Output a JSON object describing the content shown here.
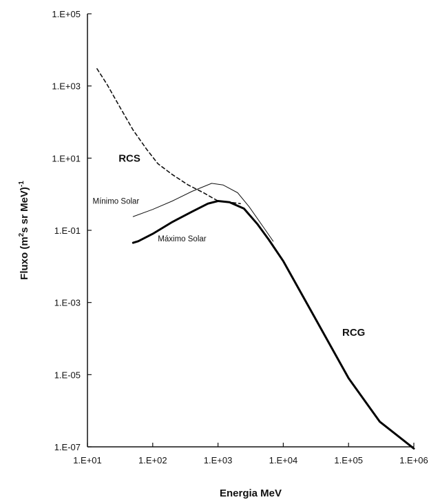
{
  "chart_data": {
    "type": "line",
    "xlabel": "Energia MeV",
    "ylabel": {
      "prefix": "Fluxo (m",
      "sup1": "2",
      "mid": "s sr MeV)",
      "sup2": "-1"
    },
    "x_scale": "log",
    "y_scale": "log",
    "xlim": [
      10,
      1000000
    ],
    "ylim": [
      1e-07,
      100000
    ],
    "x_ticks": [
      {
        "value": 10,
        "label": "1.E+01"
      },
      {
        "value": 100,
        "label": "1.E+02"
      },
      {
        "value": 1000,
        "label": "1.E+03"
      },
      {
        "value": 10000,
        "label": "1.E+04"
      },
      {
        "value": 100000,
        "label": "1.E+05"
      },
      {
        "value": 1000000,
        "label": "1.E+06"
      }
    ],
    "y_ticks": [
      {
        "value": 100000,
        "label": "1.E+05"
      },
      {
        "value": 1000,
        "label": "1.E+03"
      },
      {
        "value": 10,
        "label": "1.E+01"
      },
      {
        "value": 0.1,
        "label": "1.E-01"
      },
      {
        "value": 0.001,
        "label": "1.E-03"
      },
      {
        "value": 1e-05,
        "label": "1.E-05"
      },
      {
        "value": 1e-07,
        "label": "1.E-07"
      }
    ],
    "grid": false,
    "series": [
      {
        "id": "rcs",
        "style": "dashed",
        "color": "#111111",
        "points": [
          [
            14,
            3000
          ],
          [
            20,
            1100
          ],
          [
            30,
            300
          ],
          [
            50,
            60
          ],
          [
            80,
            18
          ],
          [
            120,
            7
          ],
          [
            200,
            3.5
          ],
          [
            350,
            1.8
          ],
          [
            600,
            1.1
          ],
          [
            1000,
            0.65
          ],
          [
            1500,
            0.6
          ],
          [
            2200,
            0.55
          ]
        ]
      },
      {
        "id": "minimo",
        "style": "thin",
        "color": "#111111",
        "points": [
          [
            50,
            0.24
          ],
          [
            100,
            0.38
          ],
          [
            200,
            0.65
          ],
          [
            400,
            1.2
          ],
          [
            800,
            2.0
          ],
          [
            1200,
            1.8
          ],
          [
            2000,
            1.1
          ],
          [
            3000,
            0.45
          ],
          [
            5000,
            0.12
          ],
          [
            7000,
            0.05
          ]
        ]
      },
      {
        "id": "maximo",
        "style": "thick",
        "color": "#000000",
        "points": [
          [
            50,
            0.045
          ],
          [
            60,
            0.05
          ],
          [
            100,
            0.08
          ],
          [
            200,
            0.17
          ],
          [
            400,
            0.33
          ],
          [
            700,
            0.55
          ],
          [
            1000,
            0.65
          ],
          [
            1500,
            0.6
          ],
          [
            2500,
            0.4
          ],
          [
            4000,
            0.15
          ],
          [
            6000,
            0.055
          ],
          [
            10000,
            0.014
          ],
          [
            30000,
            0.0004
          ],
          [
            100000,
            8e-06
          ],
          [
            300000,
            5e-07
          ],
          [
            1000000,
            9e-08
          ]
        ]
      }
    ],
    "annotations": [
      {
        "id": "rcs",
        "text": "RCS",
        "x": 30,
        "y": 8,
        "style": "bold"
      },
      {
        "id": "minimo",
        "text": "Mínimo Solar",
        "x": 12,
        "y": 0.55,
        "style": "small"
      },
      {
        "id": "maximo",
        "text": "Máximo Solar",
        "x": 120,
        "y": 0.05,
        "style": "small"
      },
      {
        "id": "rcg",
        "text": "RCG",
        "x": 80000,
        "y": 0.00012,
        "style": "bold"
      }
    ]
  }
}
